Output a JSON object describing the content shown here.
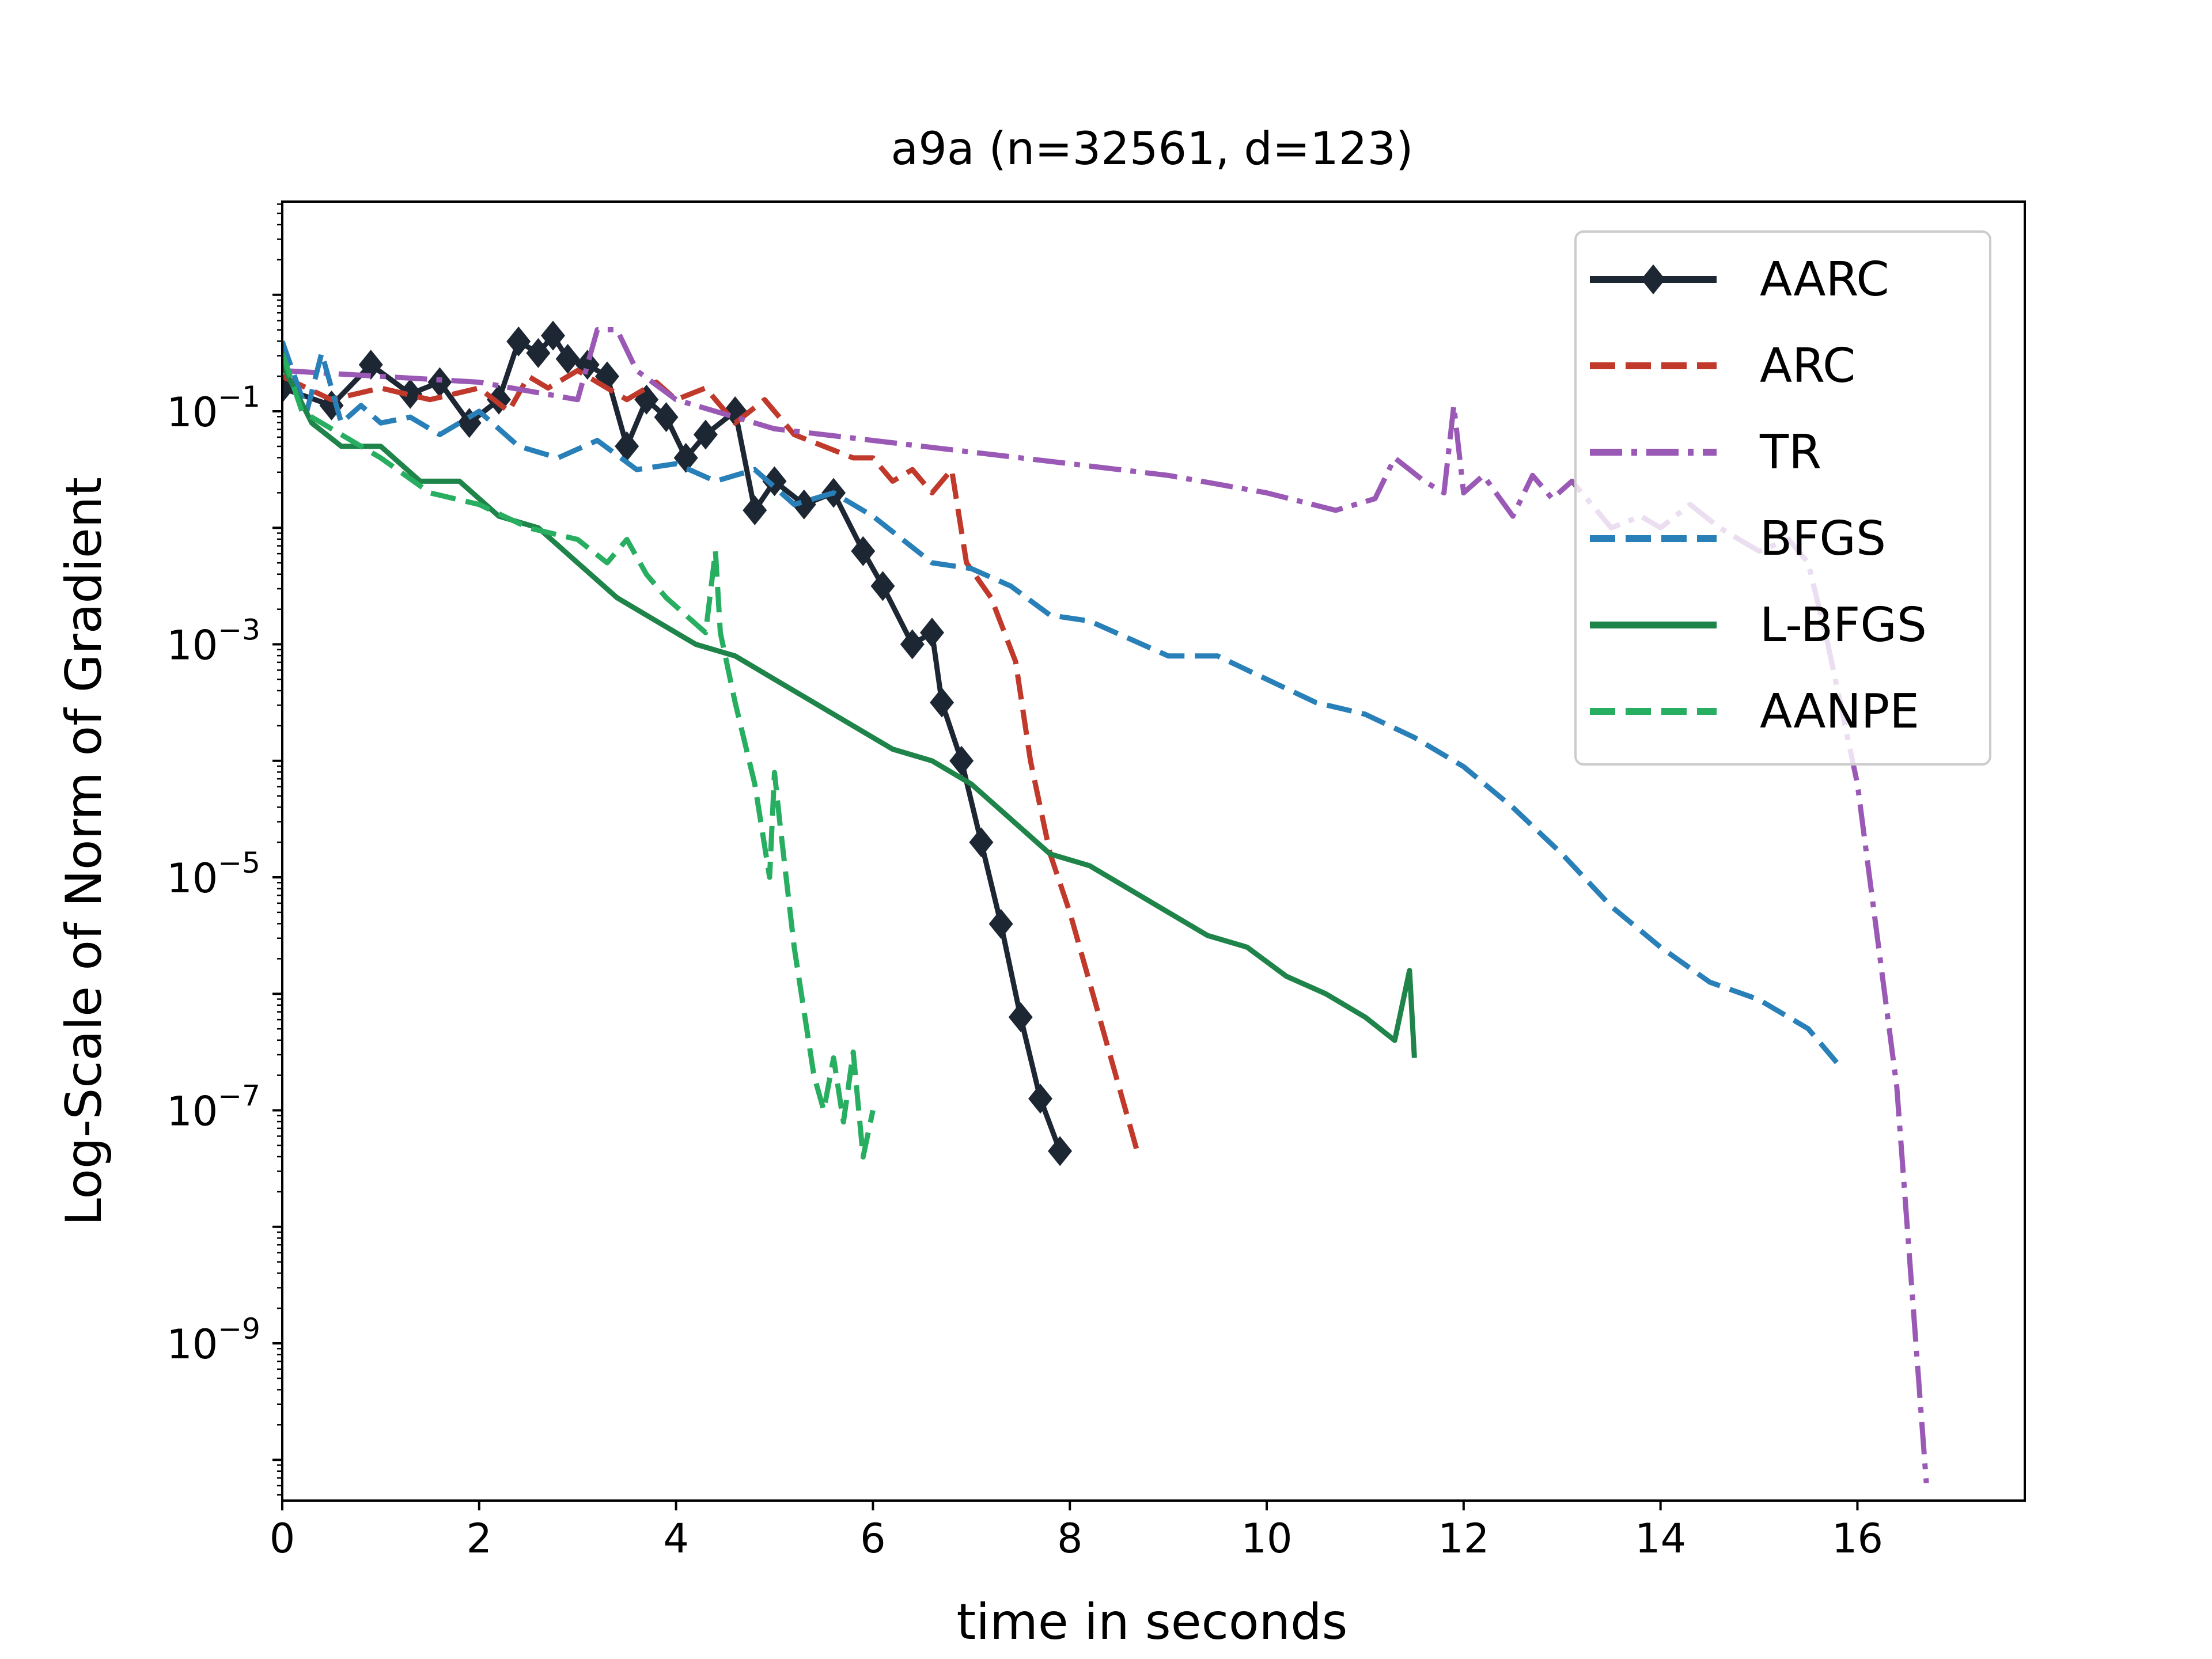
{
  "chart_data": {
    "type": "line",
    "title": "a9a (n=32561, d=123)",
    "xlabel": "time in seconds",
    "ylabel": "Log-Scale of Norm of Gradient",
    "yscale": "log",
    "xlim": [
      0,
      17.7
    ],
    "ylim_exponent": [
      -10.35,
      0.8
    ],
    "x_ticks": [
      {
        "value": 0,
        "label": "0"
      },
      {
        "value": 2,
        "label": "2"
      },
      {
        "value": 4,
        "label": "4"
      },
      {
        "value": 6,
        "label": "6"
      },
      {
        "value": 8,
        "label": "8"
      },
      {
        "value": 10,
        "label": "10"
      },
      {
        "value": 12,
        "label": "12"
      },
      {
        "value": 14,
        "label": "14"
      },
      {
        "value": 16,
        "label": "16"
      }
    ],
    "y_ticks": [
      {
        "exponent": -1,
        "base": "10",
        "sup": "−1"
      },
      {
        "exponent": -3,
        "base": "10",
        "sup": "−3"
      },
      {
        "exponent": -5,
        "base": "10",
        "sup": "−5"
      },
      {
        "exponent": -7,
        "base": "10",
        "sup": "−7"
      },
      {
        "exponent": -9,
        "base": "10",
        "sup": "−9"
      }
    ],
    "legend_position": "top-right",
    "series": [
      {
        "name": "AARC",
        "color": "#1d2733",
        "dash": "solid",
        "marker": "diamond",
        "width": 9,
        "x": [
          0,
          0.5,
          0.9,
          1.3,
          1.6,
          1.9,
          2.2,
          2.4,
          2.6,
          2.75,
          2.9,
          3.1,
          3.3,
          3.5,
          3.7,
          3.9,
          4.1,
          4.3,
          4.6,
          4.8,
          5.0,
          5.3,
          5.6,
          5.9,
          6.1,
          6.4,
          6.6,
          6.7,
          6.9,
          7.1,
          7.3,
          7.5,
          7.7,
          7.9
        ],
        "y": [
          -0.8,
          -0.95,
          -0.6,
          -0.85,
          -0.75,
          -1.1,
          -0.9,
          -0.4,
          -0.5,
          -0.35,
          -0.55,
          -0.6,
          -0.7,
          -1.3,
          -0.9,
          -1.05,
          -1.4,
          -1.2,
          -1.0,
          -1.85,
          -1.6,
          -1.8,
          -1.7,
          -2.2,
          -2.5,
          -3.0,
          -2.9,
          -3.5,
          -4.0,
          -4.7,
          -5.4,
          -6.2,
          -6.9,
          -7.35
        ]
      },
      {
        "name": "ARC",
        "color": "#c0392b",
        "dash": "dashed",
        "width": 9,
        "x": [
          0,
          0.5,
          1.0,
          1.5,
          2.0,
          2.3,
          2.5,
          2.7,
          3.0,
          3.3,
          3.5,
          3.8,
          4.0,
          4.3,
          4.6,
          4.9,
          5.2,
          5.5,
          5.8,
          6.0,
          6.2,
          6.4,
          6.6,
          6.8,
          6.95,
          7.2,
          7.45,
          7.6,
          7.8,
          8.0,
          8.3,
          8.7
        ],
        "y": [
          -0.7,
          -0.9,
          -0.8,
          -0.9,
          -0.8,
          -1.0,
          -0.7,
          -0.8,
          -0.65,
          -0.8,
          -0.9,
          -0.75,
          -0.9,
          -0.8,
          -1.1,
          -0.9,
          -1.2,
          -1.3,
          -1.4,
          -1.4,
          -1.6,
          -1.5,
          -1.7,
          -1.5,
          -2.3,
          -2.6,
          -3.15,
          -4.0,
          -4.8,
          -5.3,
          -6.2,
          -7.4
        ]
      },
      {
        "name": "TR",
        "color": "#9b59b6",
        "dash": "dashdot",
        "width": 9,
        "x": [
          0,
          1.0,
          2.0,
          3.0,
          3.2,
          3.4,
          3.6,
          4.0,
          5.0,
          6.0,
          7.0,
          8.0,
          9.0,
          10.0,
          10.7,
          11.1,
          11.3,
          11.6,
          11.8,
          11.9,
          12.0,
          12.2,
          12.5,
          12.7,
          12.9,
          13.1,
          13.5,
          13.8,
          14.0,
          14.3,
          14.6,
          15.0,
          15.3,
          15.5,
          15.7,
          16.0,
          16.4,
          16.7
        ],
        "y": [
          -0.65,
          -0.7,
          -0.75,
          -0.9,
          -0.3,
          -0.3,
          -0.65,
          -0.9,
          -1.15,
          -1.25,
          -1.35,
          -1.45,
          -1.55,
          -1.7,
          -1.85,
          -1.75,
          -1.4,
          -1.6,
          -1.7,
          -0.95,
          -1.7,
          -1.55,
          -1.9,
          -1.55,
          -1.75,
          -1.6,
          -2.0,
          -1.9,
          -2.0,
          -1.8,
          -2.0,
          -2.2,
          -2.1,
          -2.3,
          -3.0,
          -4.2,
          -6.8,
          -10.2
        ]
      },
      {
        "name": "BFGS",
        "color": "#2980b9",
        "dash": "dashed",
        "width": 9,
        "x": [
          0,
          0.25,
          0.4,
          0.6,
          0.8,
          1.0,
          1.3,
          1.6,
          2.0,
          2.4,
          2.8,
          3.2,
          3.6,
          4.0,
          4.4,
          4.8,
          5.2,
          5.6,
          6.0,
          6.3,
          6.6,
          7.0,
          7.4,
          7.8,
          8.2,
          8.6,
          9.0,
          9.5,
          10.0,
          10.5,
          11.0,
          11.5,
          12.0,
          12.5,
          13.0,
          13.5,
          14.0,
          14.5,
          15.0,
          15.5,
          15.8
        ],
        "y": [
          -0.4,
          -1.0,
          -0.5,
          -1.1,
          -0.95,
          -1.1,
          -1.05,
          -1.2,
          -1.0,
          -1.3,
          -1.4,
          -1.25,
          -1.5,
          -1.45,
          -1.6,
          -1.5,
          -1.8,
          -1.7,
          -1.9,
          -2.1,
          -2.3,
          -2.35,
          -2.5,
          -2.75,
          -2.8,
          -2.95,
          -3.1,
          -3.1,
          -3.3,
          -3.5,
          -3.6,
          -3.8,
          -4.05,
          -4.4,
          -4.8,
          -5.25,
          -5.6,
          -5.9,
          -6.05,
          -6.3,
          -6.6
        ]
      },
      {
        "name": "L-BFGS",
        "color": "#1e8449",
        "dash": "solid",
        "width": 9,
        "x": [
          0,
          0.3,
          0.6,
          1.0,
          1.4,
          1.8,
          2.2,
          2.6,
          3.0,
          3.4,
          3.8,
          4.2,
          4.6,
          5.0,
          5.4,
          5.8,
          6.2,
          6.6,
          7.0,
          7.4,
          7.8,
          8.2,
          8.6,
          9.0,
          9.4,
          9.8,
          10.2,
          10.6,
          11.0,
          11.3,
          11.45,
          11.5
        ],
        "y": [
          -0.6,
          -1.1,
          -1.3,
          -1.3,
          -1.6,
          -1.6,
          -1.9,
          -2.0,
          -2.3,
          -2.6,
          -2.8,
          -3.0,
          -3.1,
          -3.3,
          -3.5,
          -3.7,
          -3.9,
          -4.0,
          -4.2,
          -4.5,
          -4.8,
          -4.9,
          -5.1,
          -5.3,
          -5.5,
          -5.6,
          -5.85,
          -6.0,
          -6.2,
          -6.4,
          -5.8,
          -6.55
        ]
      },
      {
        "name": "AANPE",
        "color": "#27ae60",
        "dash": "dashed",
        "width": 9,
        "x": [
          0,
          0.2,
          0.6,
          1.0,
          1.5,
          2.0,
          2.5,
          3.0,
          3.3,
          3.5,
          3.7,
          3.9,
          4.1,
          4.3,
          4.4,
          4.45,
          4.6,
          4.8,
          4.95,
          5.0,
          5.05,
          5.2,
          5.4,
          5.5,
          5.6,
          5.7,
          5.8,
          5.9,
          6.0
        ],
        "y": [
          -0.5,
          -1.0,
          -1.2,
          -1.4,
          -1.7,
          -1.8,
          -2.0,
          -2.1,
          -2.3,
          -2.1,
          -2.4,
          -2.6,
          -2.75,
          -2.9,
          -2.2,
          -2.9,
          -3.5,
          -4.2,
          -5.0,
          -4.1,
          -4.5,
          -5.6,
          -6.7,
          -7.0,
          -6.55,
          -7.1,
          -6.5,
          -7.4,
          -7.0
        ]
      }
    ]
  }
}
